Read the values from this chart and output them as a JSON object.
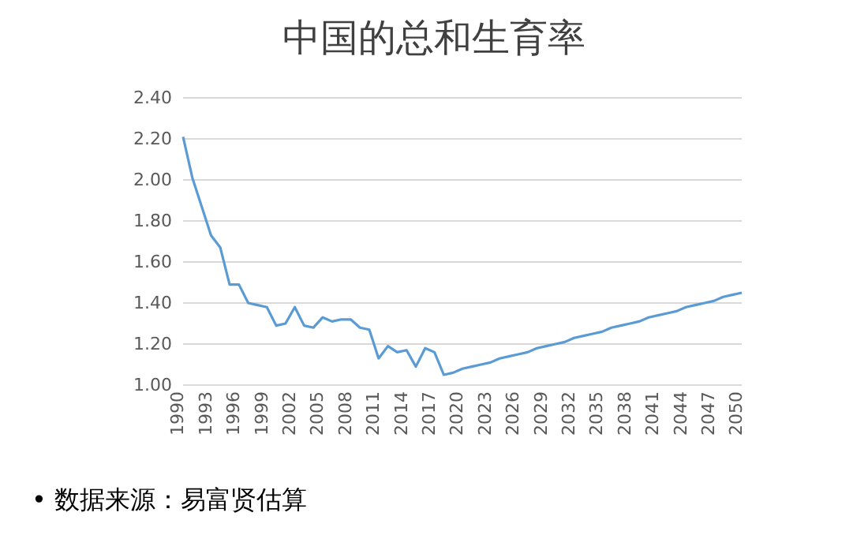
{
  "chart_data": {
    "type": "line",
    "title": "中国的总和生育率",
    "annotations": [
      "• 数据来源：易富贤估算"
    ],
    "x": [
      1990,
      1991,
      1992,
      1993,
      1994,
      1995,
      1996,
      1997,
      1998,
      1999,
      2000,
      2001,
      2002,
      2003,
      2004,
      2005,
      2006,
      2007,
      2008,
      2009,
      2010,
      2011,
      2012,
      2013,
      2014,
      2015,
      2016,
      2017,
      2018,
      2019,
      2020,
      2021,
      2022,
      2023,
      2024,
      2025,
      2026,
      2027,
      2028,
      2029,
      2030,
      2031,
      2032,
      2033,
      2034,
      2035,
      2036,
      2037,
      2038,
      2039,
      2040,
      2041,
      2042,
      2043,
      2044,
      2045,
      2046,
      2047,
      2048,
      2049,
      2050
    ],
    "series": [
      {
        "color": "#5b9bd5",
        "values": [
          2.21,
          2.01,
          1.87,
          1.73,
          1.67,
          1.49,
          1.49,
          1.4,
          1.39,
          1.38,
          1.29,
          1.3,
          1.38,
          1.29,
          1.28,
          1.33,
          1.31,
          1.32,
          1.32,
          1.28,
          1.27,
          1.13,
          1.19,
          1.16,
          1.17,
          1.09,
          1.18,
          1.16,
          1.05,
          1.06,
          1.08,
          1.09,
          1.1,
          1.11,
          1.13,
          1.14,
          1.15,
          1.16,
          1.18,
          1.19,
          1.2,
          1.21,
          1.23,
          1.24,
          1.25,
          1.26,
          1.28,
          1.29,
          1.3,
          1.31,
          1.33,
          1.34,
          1.35,
          1.36,
          1.38,
          1.39,
          1.4,
          1.41,
          1.43,
          1.44,
          1.45
        ]
      }
    ],
    "xlim": [
      1990,
      2050
    ],
    "xticks": [
      1990,
      1993,
      1996,
      1999,
      2002,
      2005,
      2008,
      2011,
      2014,
      2017,
      2020,
      2023,
      2026,
      2029,
      2032,
      2035,
      2038,
      2041,
      2044,
      2047,
      2050
    ],
    "ylim": [
      1.0,
      2.4
    ],
    "yticks": [
      {
        "value": 1.0,
        "label": "1.00"
      },
      {
        "value": 1.2,
        "label": "1.20"
      },
      {
        "value": 1.4,
        "label": "1.40"
      },
      {
        "value": 1.6,
        "label": "1.60"
      },
      {
        "value": 1.8,
        "label": "1.80"
      },
      {
        "value": 2.0,
        "label": "2.00"
      },
      {
        "value": 2.2,
        "label": "2.20"
      },
      {
        "value": 2.4,
        "label": "2.40"
      }
    ],
    "grid": "y",
    "legend": false,
    "marker": "none",
    "line_style": "solid"
  }
}
